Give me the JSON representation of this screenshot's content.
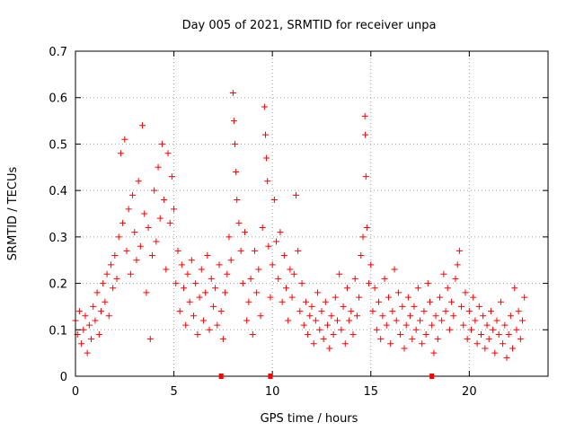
{
  "chart_data": {
    "type": "scatter",
    "title": "Day 005 of 2021, SRMTID for receiver unpa",
    "xlabel": "GPS time / hours",
    "ylabel": "SRMTID / TECUs",
    "xlim": [
      0,
      24
    ],
    "ylim": [
      0,
      0.7
    ],
    "xticks": [
      0,
      5,
      10,
      15,
      20
    ],
    "yticks": [
      0,
      0.1,
      0.2,
      0.3,
      0.4,
      0.5,
      0.6,
      0.7
    ],
    "grid": true,
    "marker": "+",
    "color": "#ff0000",
    "gap_markers_x": [
      7.4,
      9.9,
      18.1
    ],
    "series": [
      {
        "name": "SRMTID",
        "points": [
          [
            0.0,
            0.12
          ],
          [
            0.1,
            0.09
          ],
          [
            0.2,
            0.14
          ],
          [
            0.3,
            0.07
          ],
          [
            0.4,
            0.1
          ],
          [
            0.5,
            0.13
          ],
          [
            0.6,
            0.05
          ],
          [
            0.7,
            0.11
          ],
          [
            0.8,
            0.08
          ],
          [
            0.9,
            0.15
          ],
          [
            1.0,
            0.12
          ],
          [
            1.1,
            0.18
          ],
          [
            1.2,
            0.09
          ],
          [
            1.3,
            0.14
          ],
          [
            1.4,
            0.2
          ],
          [
            1.5,
            0.16
          ],
          [
            1.6,
            0.22
          ],
          [
            1.7,
            0.13
          ],
          [
            1.8,
            0.24
          ],
          [
            1.9,
            0.19
          ],
          [
            2.0,
            0.26
          ],
          [
            2.1,
            0.21
          ],
          [
            2.2,
            0.3
          ],
          [
            2.3,
            0.48
          ],
          [
            2.4,
            0.33
          ],
          [
            2.5,
            0.51
          ],
          [
            2.6,
            0.27
          ],
          [
            2.7,
            0.36
          ],
          [
            2.8,
            0.22
          ],
          [
            2.9,
            0.39
          ],
          [
            3.0,
            0.31
          ],
          [
            3.1,
            0.25
          ],
          [
            3.2,
            0.42
          ],
          [
            3.3,
            0.28
          ],
          [
            3.4,
            0.54
          ],
          [
            3.5,
            0.35
          ],
          [
            3.6,
            0.18
          ],
          [
            3.7,
            0.32
          ],
          [
            3.8,
            0.08
          ],
          [
            3.9,
            0.26
          ],
          [
            4.0,
            0.4
          ],
          [
            4.1,
            0.29
          ],
          [
            4.2,
            0.45
          ],
          [
            4.3,
            0.34
          ],
          [
            4.4,
            0.5
          ],
          [
            4.5,
            0.38
          ],
          [
            4.6,
            0.23
          ],
          [
            4.7,
            0.48
          ],
          [
            4.8,
            0.33
          ],
          [
            4.9,
            0.43
          ],
          [
            5.0,
            0.36
          ],
          [
            5.1,
            0.2
          ],
          [
            5.2,
            0.27
          ],
          [
            5.3,
            0.14
          ],
          [
            5.4,
            0.24
          ],
          [
            5.5,
            0.19
          ],
          [
            5.6,
            0.11
          ],
          [
            5.7,
            0.22
          ],
          [
            5.8,
            0.16
          ],
          [
            5.9,
            0.25
          ],
          [
            6.0,
            0.13
          ],
          [
            6.1,
            0.2
          ],
          [
            6.2,
            0.09
          ],
          [
            6.3,
            0.17
          ],
          [
            6.4,
            0.23
          ],
          [
            6.5,
            0.12
          ],
          [
            6.6,
            0.18
          ],
          [
            6.7,
            0.26
          ],
          [
            6.8,
            0.1
          ],
          [
            6.9,
            0.21
          ],
          [
            7.0,
            0.15
          ],
          [
            7.1,
            0.19
          ],
          [
            7.2,
            0.11
          ],
          [
            7.3,
            0.24
          ],
          [
            7.4,
            0.14
          ],
          [
            7.5,
            0.08
          ],
          [
            7.6,
            0.18
          ],
          [
            7.7,
            0.22
          ],
          [
            7.8,
            0.3
          ],
          [
            7.9,
            0.25
          ],
          [
            8.0,
            0.61
          ],
          [
            8.05,
            0.55
          ],
          [
            8.1,
            0.5
          ],
          [
            8.15,
            0.44
          ],
          [
            8.2,
            0.38
          ],
          [
            8.3,
            0.33
          ],
          [
            8.4,
            0.27
          ],
          [
            8.5,
            0.2
          ],
          [
            8.6,
            0.31
          ],
          [
            8.7,
            0.12
          ],
          [
            8.8,
            0.16
          ],
          [
            8.9,
            0.21
          ],
          [
            9.0,
            0.09
          ],
          [
            9.1,
            0.27
          ],
          [
            9.2,
            0.18
          ],
          [
            9.3,
            0.23
          ],
          [
            9.4,
            0.13
          ],
          [
            9.5,
            0.32
          ],
          [
            9.6,
            0.58
          ],
          [
            9.65,
            0.52
          ],
          [
            9.7,
            0.47
          ],
          [
            9.75,
            0.42
          ],
          [
            9.8,
            0.28
          ],
          [
            9.9,
            0.17
          ],
          [
            10.0,
            0.24
          ],
          [
            10.1,
            0.38
          ],
          [
            10.2,
            0.29
          ],
          [
            10.3,
            0.21
          ],
          [
            10.4,
            0.31
          ],
          [
            10.5,
            0.16
          ],
          [
            10.6,
            0.26
          ],
          [
            10.7,
            0.19
          ],
          [
            10.8,
            0.12
          ],
          [
            10.9,
            0.23
          ],
          [
            11.0,
            0.17
          ],
          [
            11.1,
            0.22
          ],
          [
            11.2,
            0.39
          ],
          [
            11.3,
            0.27
          ],
          [
            11.4,
            0.14
          ],
          [
            11.5,
            0.2
          ],
          [
            11.6,
            0.11
          ],
          [
            11.7,
            0.16
          ],
          [
            11.8,
            0.09
          ],
          [
            11.9,
            0.13
          ],
          [
            12.0,
            0.15
          ],
          [
            12.1,
            0.07
          ],
          [
            12.2,
            0.12
          ],
          [
            12.3,
            0.18
          ],
          [
            12.4,
            0.1
          ],
          [
            12.5,
            0.14
          ],
          [
            12.6,
            0.08
          ],
          [
            12.7,
            0.16
          ],
          [
            12.8,
            0.11
          ],
          [
            12.9,
            0.06
          ],
          [
            13.0,
            0.13
          ],
          [
            13.1,
            0.09
          ],
          [
            13.2,
            0.17
          ],
          [
            13.3,
            0.12
          ],
          [
            13.4,
            0.22
          ],
          [
            13.5,
            0.1
          ],
          [
            13.6,
            0.15
          ],
          [
            13.7,
            0.07
          ],
          [
            13.8,
            0.19
          ],
          [
            13.9,
            0.12
          ],
          [
            14.0,
            0.14
          ],
          [
            14.1,
            0.09
          ],
          [
            14.2,
            0.21
          ],
          [
            14.3,
            0.13
          ],
          [
            14.4,
            0.17
          ],
          [
            14.5,
            0.26
          ],
          [
            14.6,
            0.3
          ],
          [
            14.7,
            0.56
          ],
          [
            14.72,
            0.52
          ],
          [
            14.75,
            0.43
          ],
          [
            14.8,
            0.32
          ],
          [
            14.9,
            0.2
          ],
          [
            15.0,
            0.24
          ],
          [
            15.1,
            0.14
          ],
          [
            15.2,
            0.19
          ],
          [
            15.3,
            0.1
          ],
          [
            15.4,
            0.16
          ],
          [
            15.5,
            0.08
          ],
          [
            15.6,
            0.13
          ],
          [
            15.7,
            0.21
          ],
          [
            15.8,
            0.11
          ],
          [
            15.9,
            0.17
          ],
          [
            16.0,
            0.07
          ],
          [
            16.1,
            0.14
          ],
          [
            16.2,
            0.23
          ],
          [
            16.3,
            0.12
          ],
          [
            16.4,
            0.18
          ],
          [
            16.5,
            0.09
          ],
          [
            16.6,
            0.15
          ],
          [
            16.7,
            0.06
          ],
          [
            16.8,
            0.11
          ],
          [
            16.9,
            0.17
          ],
          [
            17.0,
            0.13
          ],
          [
            17.1,
            0.08
          ],
          [
            17.2,
            0.15
          ],
          [
            17.3,
            0.1
          ],
          [
            17.4,
            0.19
          ],
          [
            17.5,
            0.12
          ],
          [
            17.6,
            0.07
          ],
          [
            17.7,
            0.14
          ],
          [
            17.8,
            0.09
          ],
          [
            17.9,
            0.2
          ],
          [
            18.0,
            0.16
          ],
          [
            18.1,
            0.11
          ],
          [
            18.2,
            0.05
          ],
          [
            18.3,
            0.13
          ],
          [
            18.4,
            0.08
          ],
          [
            18.5,
            0.17
          ],
          [
            18.6,
            0.12
          ],
          [
            18.7,
            0.22
          ],
          [
            18.8,
            0.14
          ],
          [
            18.9,
            0.19
          ],
          [
            19.0,
            0.1
          ],
          [
            19.1,
            0.16
          ],
          [
            19.2,
            0.13
          ],
          [
            19.3,
            0.21
          ],
          [
            19.4,
            0.24
          ],
          [
            19.5,
            0.27
          ],
          [
            19.6,
            0.15
          ],
          [
            19.7,
            0.11
          ],
          [
            19.8,
            0.18
          ],
          [
            19.9,
            0.08
          ],
          [
            20.0,
            0.14
          ],
          [
            20.1,
            0.1
          ],
          [
            20.2,
            0.17
          ],
          [
            20.3,
            0.12
          ],
          [
            20.4,
            0.07
          ],
          [
            20.5,
            0.15
          ],
          [
            20.6,
            0.09
          ],
          [
            20.7,
            0.13
          ],
          [
            20.8,
            0.06
          ],
          [
            20.9,
            0.11
          ],
          [
            21.0,
            0.08
          ],
          [
            21.1,
            0.14
          ],
          [
            21.2,
            0.1
          ],
          [
            21.3,
            0.05
          ],
          [
            21.4,
            0.12
          ],
          [
            21.5,
            0.09
          ],
          [
            21.6,
            0.16
          ],
          [
            21.7,
            0.07
          ],
          [
            21.8,
            0.11
          ],
          [
            21.9,
            0.04
          ],
          [
            22.0,
            0.09
          ],
          [
            22.1,
            0.13
          ],
          [
            22.2,
            0.06
          ],
          [
            22.3,
            0.19
          ],
          [
            22.4,
            0.1
          ],
          [
            22.5,
            0.14
          ],
          [
            22.6,
            0.08
          ],
          [
            22.7,
            0.12
          ],
          [
            22.8,
            0.17
          ]
        ]
      }
    ]
  }
}
